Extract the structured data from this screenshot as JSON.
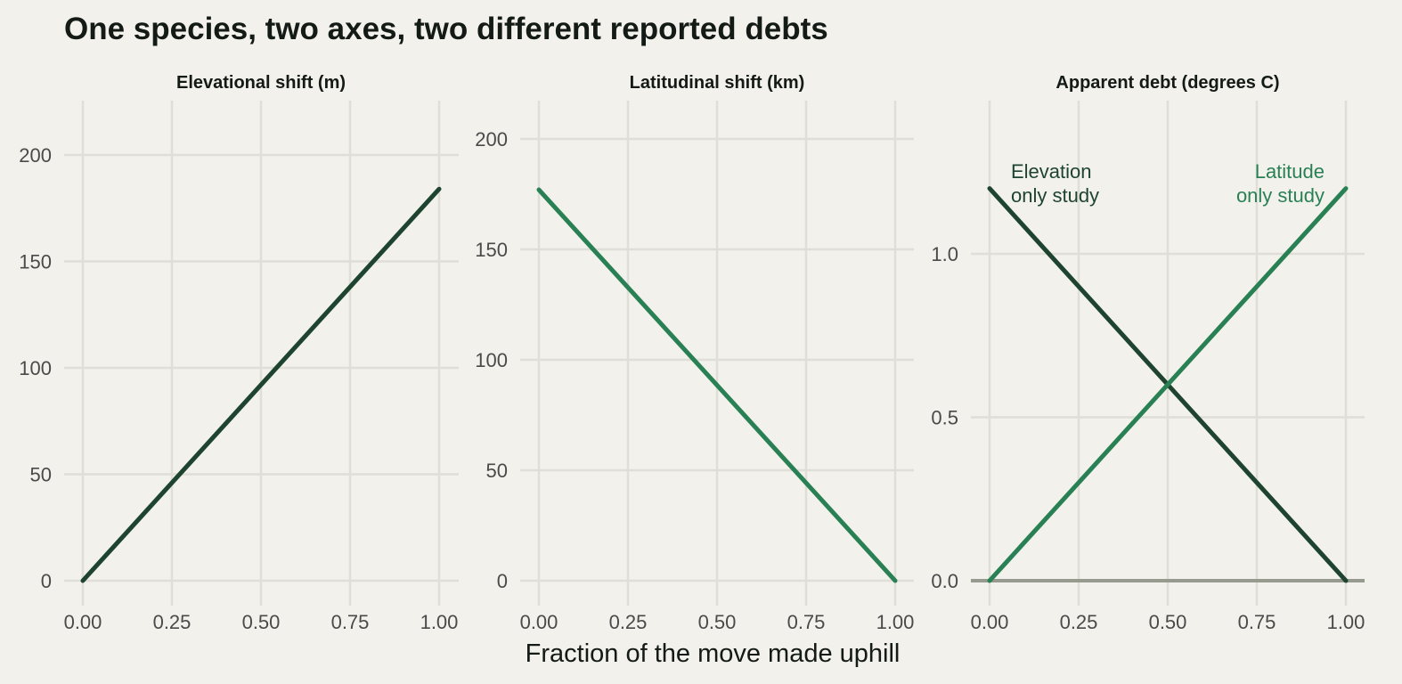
{
  "chart_title": "One species, two axes, two different reported debts",
  "colors": {
    "background": "#f2f1eb",
    "grid": "#dfded7",
    "elevation": "#1e4430",
    "latitude": "#2a8055",
    "baseline": "#979a8f"
  },
  "chart_data": [
    {
      "type": "line",
      "title": "Elevational shift (m)",
      "xlabel": "Fraction of the move made uphill",
      "ylabel": "",
      "xlim": [
        0,
        1
      ],
      "ylim": [
        0,
        200
      ],
      "xticks": [
        "0.00",
        "0.25",
        "0.50",
        "0.75",
        "1.00"
      ],
      "yticks": [
        "0",
        "50",
        "100",
        "150",
        "200"
      ],
      "grid": true,
      "series": [
        {
          "color_key": "elevation",
          "x": [
            0,
            1
          ],
          "y": [
            0,
            184
          ]
        }
      ]
    },
    {
      "type": "line",
      "title": "Latitudinal shift (km)",
      "xlabel": "Fraction of the move made uphill",
      "ylabel": "",
      "xlim": [
        0,
        1
      ],
      "ylim": [
        0,
        200
      ],
      "xticks": [
        "0.00",
        "0.25",
        "0.50",
        "0.75",
        "1.00"
      ],
      "yticks": [
        "0",
        "50",
        "100",
        "150",
        "200"
      ],
      "grid": true,
      "series": [
        {
          "color_key": "latitude",
          "x": [
            0,
            1
          ],
          "y": [
            177,
            0
          ]
        }
      ]
    },
    {
      "type": "line",
      "title": "Apparent debt (degrees C)",
      "xlabel": "Fraction of the move made uphill",
      "ylabel": "",
      "xlim": [
        0,
        1
      ],
      "ylim": [
        0,
        1.2
      ],
      "xticks": [
        "0.00",
        "0.25",
        "0.50",
        "0.75",
        "1.00"
      ],
      "yticks": [
        "0.0",
        "0.5",
        "1.0"
      ],
      "grid": true,
      "reference_line": 0,
      "series": [
        {
          "name": "Elevation only study",
          "color_key": "elevation",
          "x": [
            0,
            1
          ],
          "y": [
            1.2,
            0
          ]
        },
        {
          "name": "Latitude only study",
          "color_key": "latitude",
          "x": [
            0,
            1
          ],
          "y": [
            0,
            1.2
          ]
        }
      ],
      "annotations": [
        {
          "lines": [
            "Elevation",
            "only study"
          ],
          "color_key": "elevation",
          "anchor": "start"
        },
        {
          "lines": [
            "Latitude",
            "only study"
          ],
          "color_key": "latitude",
          "anchor": "end"
        }
      ]
    }
  ],
  "shared_xlabel": "Fraction of the move made uphill"
}
